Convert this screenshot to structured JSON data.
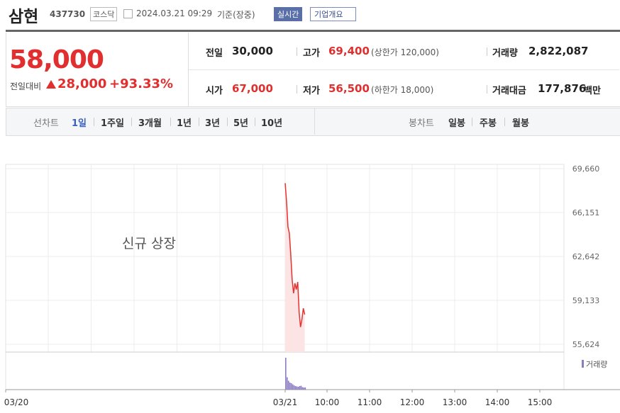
{
  "header": {
    "name": "삼현",
    "code": "437730",
    "market": "코스닥",
    "datetime": "2024.03.21 09:29",
    "basis": "기준(장중)",
    "buttons": [
      "실시간",
      "기업개요"
    ]
  },
  "quote": {
    "price": "58,000",
    "change_label": "전일대비",
    "change": "28,000",
    "change_rate": "+93.33%"
  },
  "stats": [
    {
      "label": "전일",
      "value": "30,000"
    },
    {
      "label": "고가",
      "value": "69,400",
      "note": "(상한가 120,000)"
    },
    {
      "label": "거래량",
      "value": "2,822,087"
    },
    {
      "label": "시가",
      "value": "67,000"
    },
    {
      "label": "저가",
      "value": "56,500",
      "note": "(하한가 18,000)"
    },
    {
      "label": "거래대금",
      "value": "177,876",
      "unit": "백만"
    }
  ],
  "tabs": {
    "line_label": "선차트",
    "line": [
      "1일",
      "1주일",
      "3개월",
      "1년",
      "3년",
      "5년",
      "10년"
    ],
    "candle_label": "봉차트",
    "candle": [
      "일봉",
      "주봉",
      "월봉"
    ]
  },
  "chart_data": {
    "type": "line",
    "annotation": "신규 상장",
    "x": [
      "09:00",
      "09:02",
      "09:04",
      "09:06",
      "09:08",
      "09:10",
      "09:12",
      "09:14",
      "09:16",
      "09:18",
      "09:20",
      "09:22",
      "09:24",
      "09:26",
      "09:28"
    ],
    "series": [
      {
        "color": "#e5312f",
        "values": [
          68500,
          67000,
          65000,
          64500,
          62800,
          60800,
          59700,
          60500,
          60000,
          60600,
          58200,
          57000,
          57600,
          58500,
          58000
        ]
      },
      {
        "name": "거래량",
        "color": "#8e7cc3",
        "axis": "y2",
        "values": [
          900000,
          350000,
          250000,
          200000,
          180000,
          150000,
          120000,
          100000,
          90000,
          80000,
          100000,
          110000,
          70000,
          60000,
          62000
        ]
      }
    ],
    "xticks": [
      "03/20",
      "03/21",
      "10:00",
      "11:00",
      "12:00",
      "13:00",
      "14:00",
      "15:00"
    ],
    "ylim": [
      55000,
      70000
    ],
    "yticks": [
      {
        "value": 55624,
        "label": "55,624"
      },
      {
        "value": 59133,
        "label": "59,133"
      },
      {
        "value": 62642,
        "label": "62,642"
      },
      {
        "value": 66151,
        "label": "66,151"
      },
      {
        "value": 69660,
        "label": "69,660"
      }
    ],
    "grid": true
  }
}
